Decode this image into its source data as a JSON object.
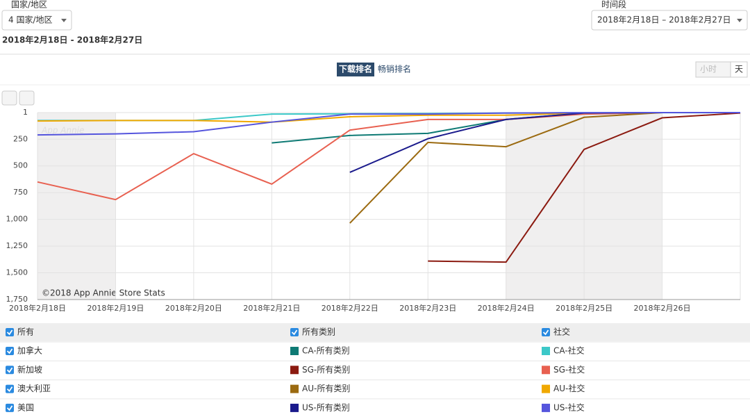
{
  "header": {
    "region_label": "国家/地区",
    "region_select": "4 国家/地区",
    "period_label": "时间段",
    "period_select": "2018年2月18日 – 2018年2月27日",
    "subtitle": "2018年2月18日 - 2018年2月27日"
  },
  "tabs": {
    "download": "下载排名",
    "grossing": "畅销排名",
    "hour": "小时",
    "day": "天"
  },
  "watermark": "App Annie",
  "copyright": "©2018 App Annie Store Stats",
  "legend": {
    "header": [
      "所有",
      "所有类别",
      "社交"
    ],
    "countries": [
      "加拿大",
      "新加坡",
      "澳大利亚",
      "美国"
    ]
  },
  "chart_data": {
    "type": "line",
    "y_inverted": true,
    "grid": true,
    "categories": [
      "2018年2月18日",
      "2018年2月19日",
      "2018年2月20日",
      "2018年2月21日",
      "2018年2月22日",
      "2018年2月23日",
      "2018年2月24日",
      "2018年2月25日",
      "2018年2月26日",
      null
    ],
    "ylim": [
      1,
      1750
    ],
    "yticks": [
      1,
      250,
      500,
      750,
      {
        "value": 1000,
        "label": "1,000"
      },
      {
        "value": 1250,
        "label": "1,250"
      },
      {
        "value": 1500,
        "label": "1,500"
      },
      {
        "value": 1750,
        "label": "1,750"
      }
    ],
    "series": [
      {
        "name": "CA-所有类别",
        "color": "#0e7a74",
        "values": [
          null,
          null,
          null,
          285,
          215,
          195,
          65,
          5,
          1,
          1
        ]
      },
      {
        "name": "CA-社交",
        "color": "#3cc8c8",
        "values": [
          75,
          75,
          75,
          15,
          12,
          10,
          5,
          3,
          2,
          1
        ]
      },
      {
        "name": "SG-所有类别",
        "color": "#8b1a10",
        "values": [
          null,
          null,
          null,
          null,
          null,
          1390,
          1400,
          345,
          50,
          5
        ]
      },
      {
        "name": "SG-社交",
        "color": "#e86050",
        "values": [
          650,
          815,
          385,
          670,
          165,
          65,
          65,
          15,
          1,
          1
        ]
      },
      {
        "name": "AU-所有类别",
        "color": "#9b6a10",
        "values": [
          null,
          null,
          null,
          null,
          1035,
          280,
          320,
          45,
          1,
          1
        ]
      },
      {
        "name": "AU-社交",
        "color": "#f0a800",
        "values": [
          80,
          75,
          75,
          90,
          40,
          25,
          25,
          5,
          1,
          1
        ]
      },
      {
        "name": "US-所有类别",
        "color": "#1a1a8c",
        "values": [
          null,
          null,
          null,
          null,
          560,
          245,
          65,
          5,
          1,
          1
        ]
      },
      {
        "name": "US-社交",
        "color": "#5555dd",
        "values": [
          210,
          200,
          180,
          90,
          15,
          15,
          5,
          2,
          1,
          1
        ]
      }
    ]
  }
}
